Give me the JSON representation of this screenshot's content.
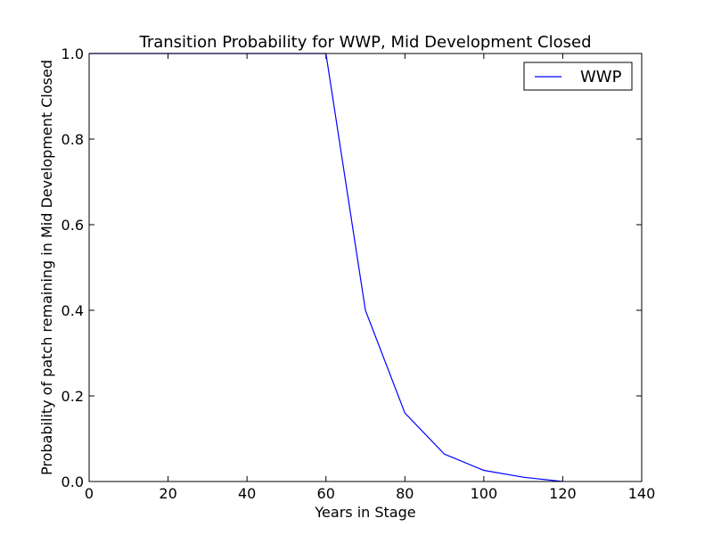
{
  "chart_data": {
    "type": "line",
    "title": "Transition Probability for WWP, Mid Development Closed",
    "xlabel": "Years in Stage",
    "ylabel": "Probability of patch remaining in Mid Development Closed",
    "xlim": [
      0,
      140
    ],
    "ylim": [
      0.0,
      1.0
    ],
    "xticks": [
      0,
      20,
      40,
      60,
      80,
      100,
      120,
      140
    ],
    "yticks": [
      0.0,
      0.2,
      0.4,
      0.6,
      0.8,
      1.0
    ],
    "xtick_labels": [
      "0",
      "20",
      "40",
      "60",
      "80",
      "100",
      "120",
      "140"
    ],
    "ytick_labels": [
      "0.0",
      "0.2",
      "0.4",
      "0.6",
      "0.8",
      "1.0"
    ],
    "grid": false,
    "legend_position": "top-right",
    "series": [
      {
        "name": "WWP",
        "color": "#0000ff",
        "x": [
          0,
          10,
          20,
          30,
          40,
          50,
          60,
          70,
          80,
          90,
          100,
          110,
          120
        ],
        "y": [
          1.0,
          1.0,
          1.0,
          1.0,
          1.0,
          1.0,
          1.0,
          0.4,
          0.16,
          0.064,
          0.026,
          0.01,
          0.0
        ]
      }
    ]
  }
}
